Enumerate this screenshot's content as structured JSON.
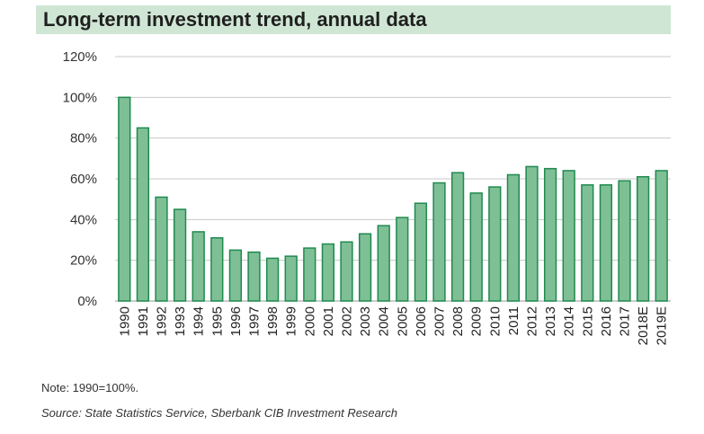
{
  "chart_data": {
    "type": "bar",
    "title": "Long-term investment trend, annual data",
    "categories": [
      "1990",
      "1991",
      "1992",
      "1993",
      "1994",
      "1995",
      "1996",
      "1997",
      "1998",
      "1999",
      "2000",
      "2001",
      "2002",
      "2003",
      "2004",
      "2005",
      "2006",
      "2007",
      "2008",
      "2009",
      "2010",
      "2011",
      "2012",
      "2013",
      "2014",
      "2015",
      "2016",
      "2017",
      "2018E",
      "2019E"
    ],
    "values": [
      100,
      85,
      51,
      45,
      34,
      31,
      25,
      24,
      21,
      22,
      26,
      28,
      29,
      33,
      37,
      41,
      48,
      58,
      63,
      53,
      56,
      62,
      66,
      65,
      64,
      57,
      57,
      59,
      61,
      64
    ],
    "yticks": [
      "0%",
      "20%",
      "40%",
      "60%",
      "80%",
      "100%",
      "120%"
    ],
    "ylim": [
      0,
      120
    ],
    "grid": true,
    "bar_fill": "#7fbf96",
    "bar_stroke": "#1f8a4f",
    "note": "Note: 1990=100%.",
    "source": "Source: State Statistics Service, Sberbank CIB Investment Research"
  }
}
